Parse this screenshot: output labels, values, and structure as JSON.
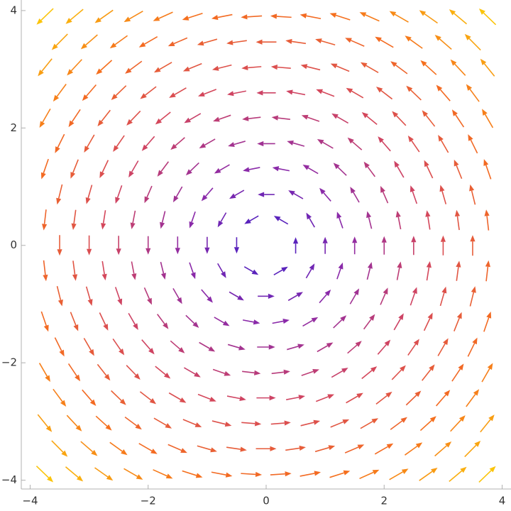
{
  "chart_data": {
    "type": "vector",
    "xlim": [
      -4.15,
      4.15
    ],
    "ylim": [
      -4.15,
      4.18
    ],
    "xticks": [
      {
        "value": -4,
        "label": "−4"
      },
      {
        "value": -2,
        "label": "−2"
      },
      0,
      2,
      4
    ],
    "yticks": [
      {
        "value": -4,
        "label": "−4"
      },
      {
        "value": -2,
        "label": "−2"
      },
      0,
      2,
      4
    ],
    "colors": [
      "#3d1fc8",
      "#8c2aa8",
      "#d2455f",
      "#f56d1e",
      "#fbc40a"
    ],
    "rows": [
      {
        "y": 3.897,
        "u": -3.897,
        "x": [
          -3.75,
          -3.25,
          -2.75,
          -2.25,
          -1.75,
          -1.25,
          -0.75,
          -0.25,
          0.25,
          0.75,
          1.25,
          1.75,
          2.25,
          2.75,
          3.25,
          3.75
        ],
        "v": [
          -3.75,
          -3.25,
          -2.75,
          -2.25,
          -1.75,
          -1.25,
          -0.75,
          -0.25,
          0.25,
          0.75,
          1.25,
          1.75,
          2.25,
          2.75,
          3.25,
          3.75
        ]
      },
      {
        "y": 3.464,
        "u": -3.464,
        "x": [
          -3.5,
          -3,
          -2.5,
          -2,
          -1.5,
          -1,
          -0.5,
          0,
          0.5,
          1,
          1.5,
          2,
          2.5,
          3,
          3.5
        ],
        "v": [
          -3.5,
          -3,
          -2.5,
          -2,
          -1.5,
          -1,
          -0.5,
          0,
          0.5,
          1,
          1.5,
          2,
          2.5,
          3,
          3.5
        ]
      },
      {
        "y": 3.031,
        "u": -3.031,
        "x": [
          -3.75,
          -3.25,
          -2.75,
          -2.25,
          -1.75,
          -1.25,
          -0.75,
          -0.25,
          0.25,
          0.75,
          1.25,
          1.75,
          2.25,
          2.75,
          3.25,
          3.75
        ],
        "v": [
          -3.75,
          -3.25,
          -2.75,
          -2.25,
          -1.75,
          -1.25,
          -0.75,
          -0.25,
          0.25,
          0.75,
          1.25,
          1.75,
          2.25,
          2.75,
          3.25,
          3.75
        ]
      },
      {
        "y": 2.598,
        "u": -2.598,
        "x": [
          -3.5,
          -3,
          -2.5,
          -2,
          -1.5,
          -1,
          -0.5,
          0,
          0.5,
          1,
          1.5,
          2,
          2.5,
          3,
          3.5
        ],
        "v": [
          -3.5,
          -3,
          -2.5,
          -2,
          -1.5,
          -1,
          -0.5,
          0,
          0.5,
          1,
          1.5,
          2,
          2.5,
          3,
          3.5
        ]
      },
      {
        "y": 2.165,
        "u": -2.165,
        "x": [
          -3.75,
          -3.25,
          -2.75,
          -2.25,
          -1.75,
          -1.25,
          -0.75,
          -0.25,
          0.25,
          0.75,
          1.25,
          1.75,
          2.25,
          2.75,
          3.25,
          3.75
        ],
        "v": [
          -3.75,
          -3.25,
          -2.75,
          -2.25,
          -1.75,
          -1.25,
          -0.75,
          -0.25,
          0.25,
          0.75,
          1.25,
          1.75,
          2.25,
          2.75,
          3.25,
          3.75
        ]
      },
      {
        "y": 1.732,
        "u": -1.732,
        "x": [
          -3.5,
          -3,
          -2.5,
          -2,
          -1.5,
          -1,
          -0.5,
          0,
          0.5,
          1,
          1.5,
          2,
          2.5,
          3,
          3.5
        ],
        "v": [
          -3.5,
          -3,
          -2.5,
          -2,
          -1.5,
          -1,
          -0.5,
          0,
          0.5,
          1,
          1.5,
          2,
          2.5,
          3,
          3.5
        ]
      },
      {
        "y": 1.299,
        "u": -1.299,
        "x": [
          -3.75,
          -3.25,
          -2.75,
          -2.25,
          -1.75,
          -1.25,
          -0.75,
          -0.25,
          0.25,
          0.75,
          1.25,
          1.75,
          2.25,
          2.75,
          3.25,
          3.75
        ],
        "v": [
          -3.75,
          -3.25,
          -2.75,
          -2.25,
          -1.75,
          -1.25,
          -0.75,
          -0.25,
          0.25,
          0.75,
          1.25,
          1.75,
          2.25,
          2.75,
          3.25,
          3.75
        ]
      },
      {
        "y": 0.866,
        "u": -0.866,
        "x": [
          -3.5,
          -3,
          -2.5,
          -2,
          -1.5,
          -1,
          -0.5,
          0,
          0.5,
          1,
          1.5,
          2,
          2.5,
          3,
          3.5
        ],
        "v": [
          -3.5,
          -3,
          -2.5,
          -2,
          -1.5,
          -1,
          -0.5,
          0,
          0.5,
          1,
          1.5,
          2,
          2.5,
          3,
          3.5
        ]
      },
      {
        "y": 0.433,
        "u": -0.433,
        "x": [
          -3.75,
          -3.25,
          -2.75,
          -2.25,
          -1.75,
          -1.25,
          -0.75,
          -0.25,
          0.25,
          0.75,
          1.25,
          1.75,
          2.25,
          2.75,
          3.25,
          3.75
        ],
        "v": [
          -3.75,
          -3.25,
          -2.75,
          -2.25,
          -1.75,
          -1.25,
          -0.75,
          -0.25,
          0.25,
          0.75,
          1.25,
          1.75,
          2.25,
          2.75,
          3.25,
          3.75
        ]
      },
      {
        "y": 0,
        "u": 0,
        "x": [
          -3.5,
          -3,
          -2.5,
          -2,
          -1.5,
          -1,
          -0.5,
          0.5,
          1,
          1.5,
          2,
          2.5,
          3,
          3.5
        ],
        "v": [
          -3.5,
          -3,
          -2.5,
          -2,
          -1.5,
          -1,
          -0.5,
          0.5,
          1,
          1.5,
          2,
          2.5,
          3,
          3.5
        ]
      },
      {
        "y": -0.433,
        "u": 0.433,
        "x": [
          -3.75,
          -3.25,
          -2.75,
          -2.25,
          -1.75,
          -1.25,
          -0.75,
          -0.25,
          0.25,
          0.75,
          1.25,
          1.75,
          2.25,
          2.75,
          3.25,
          3.75
        ],
        "v": [
          -3.75,
          -3.25,
          -2.75,
          -2.25,
          -1.75,
          -1.25,
          -0.75,
          -0.25,
          0.25,
          0.75,
          1.25,
          1.75,
          2.25,
          2.75,
          3.25,
          3.75
        ]
      },
      {
        "y": -0.866,
        "u": 0.866,
        "x": [
          -3.5,
          -3,
          -2.5,
          -2,
          -1.5,
          -1,
          -0.5,
          0,
          0.5,
          1,
          1.5,
          2,
          2.5,
          3,
          3.5
        ],
        "v": [
          -3.5,
          -3,
          -2.5,
          -2,
          -1.5,
          -1,
          -0.5,
          0,
          0.5,
          1,
          1.5,
          2,
          2.5,
          3,
          3.5
        ]
      },
      {
        "y": -1.299,
        "u": 1.299,
        "x": [
          -3.75,
          -3.25,
          -2.75,
          -2.25,
          -1.75,
          -1.25,
          -0.75,
          -0.25,
          0.25,
          0.75,
          1.25,
          1.75,
          2.25,
          2.75,
          3.25,
          3.75
        ],
        "v": [
          -3.75,
          -3.25,
          -2.75,
          -2.25,
          -1.75,
          -1.25,
          -0.75,
          -0.25,
          0.25,
          0.75,
          1.25,
          1.75,
          2.25,
          2.75,
          3.25,
          3.75
        ]
      },
      {
        "y": -1.732,
        "u": 1.732,
        "x": [
          -3.5,
          -3,
          -2.5,
          -2,
          -1.5,
          -1,
          -0.5,
          0,
          0.5,
          1,
          1.5,
          2,
          2.5,
          3,
          3.5
        ],
        "v": [
          -3.5,
          -3,
          -2.5,
          -2,
          -1.5,
          -1,
          -0.5,
          0,
          0.5,
          1,
          1.5,
          2,
          2.5,
          3,
          3.5
        ]
      },
      {
        "y": -2.165,
        "u": 2.165,
        "x": [
          -3.75,
          -3.25,
          -2.75,
          -2.25,
          -1.75,
          -1.25,
          -0.75,
          -0.25,
          0.25,
          0.75,
          1.25,
          1.75,
          2.25,
          2.75,
          3.25,
          3.75
        ],
        "v": [
          -3.75,
          -3.25,
          -2.75,
          -2.25,
          -1.75,
          -1.25,
          -0.75,
          -0.25,
          0.25,
          0.75,
          1.25,
          1.75,
          2.25,
          2.75,
          3.25,
          3.75
        ]
      },
      {
        "y": -2.598,
        "u": 2.598,
        "x": [
          -3.5,
          -3,
          -2.5,
          -2,
          -1.5,
          -1,
          -0.5,
          0,
          0.5,
          1,
          1.5,
          2,
          2.5,
          3,
          3.5
        ],
        "v": [
          -3.5,
          -3,
          -2.5,
          -2,
          -1.5,
          -1,
          -0.5,
          0,
          0.5,
          1,
          1.5,
          2,
          2.5,
          3,
          3.5
        ]
      },
      {
        "y": -3.031,
        "u": 3.031,
        "x": [
          -3.75,
          -3.25,
          -2.75,
          -2.25,
          -1.75,
          -1.25,
          -0.75,
          -0.25,
          0.25,
          0.75,
          1.25,
          1.75,
          2.25,
          2.75,
          3.25,
          3.75
        ],
        "v": [
          -3.75,
          -3.25,
          -2.75,
          -2.25,
          -1.75,
          -1.25,
          -0.75,
          -0.25,
          0.25,
          0.75,
          1.25,
          1.75,
          2.25,
          2.75,
          3.25,
          3.75
        ]
      },
      {
        "y": -3.464,
        "u": 3.464,
        "x": [
          -3.5,
          -3,
          -2.5,
          -2,
          -1.5,
          -1,
          -0.5,
          0,
          0.5,
          1,
          1.5,
          2,
          2.5,
          3,
          3.5
        ],
        "v": [
          -3.5,
          -3,
          -2.5,
          -2,
          -1.5,
          -1,
          -0.5,
          0,
          0.5,
          1,
          1.5,
          2,
          2.5,
          3,
          3.5
        ]
      },
      {
        "y": -3.897,
        "u": 3.897,
        "x": [
          -3.75,
          -3.25,
          -2.75,
          -2.25,
          -1.75,
          -1.25,
          -0.75,
          -0.25,
          0.25,
          0.75,
          1.25,
          1.75,
          2.25,
          2.75,
          3.25,
          3.75
        ],
        "v": [
          -3.75,
          -3.25,
          -2.75,
          -2.25,
          -1.75,
          -1.25,
          -0.75,
          -0.25,
          0.25,
          0.75,
          1.25,
          1.75,
          2.25,
          2.75,
          3.25,
          3.75
        ]
      }
    ]
  }
}
